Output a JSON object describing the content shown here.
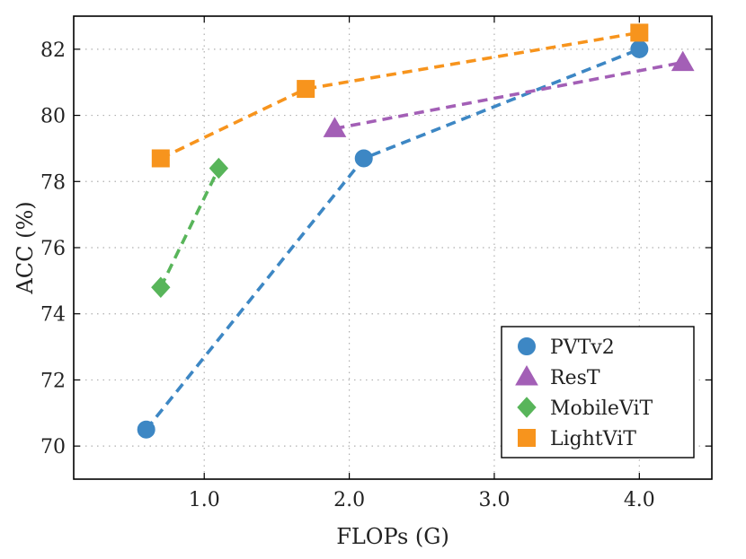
{
  "chart_data": {
    "type": "line",
    "title": "",
    "xlabel": "FLOPs (G)",
    "ylabel": "ACC (%)",
    "xlim": [
      0.1,
      4.5
    ],
    "ylim": [
      69,
      83
    ],
    "xticks": [
      1.0,
      2.0,
      3.0,
      4.0
    ],
    "xtick_labels": [
      "1.0",
      "2.0",
      "3.0",
      "4.0"
    ],
    "yticks": [
      70,
      72,
      74,
      76,
      78,
      80,
      82
    ],
    "ytick_labels": [
      "70",
      "72",
      "74",
      "76",
      "78",
      "80",
      "82"
    ],
    "grid": true,
    "legend_position": "bottom-right",
    "series": [
      {
        "name": "PVTv2",
        "marker": "circle",
        "color": "#3d87c4",
        "x": [
          0.6,
          2.1,
          4.0
        ],
        "y": [
          70.5,
          78.7,
          82.0
        ]
      },
      {
        "name": "ResT",
        "marker": "triangle",
        "color": "#a35fb6",
        "x": [
          1.9,
          4.3
        ],
        "y": [
          79.6,
          81.6
        ]
      },
      {
        "name": "MobileViT",
        "marker": "diamond",
        "color": "#58b55a",
        "x": [
          0.7,
          1.1
        ],
        "y": [
          74.8,
          78.4
        ]
      },
      {
        "name": "LightViT",
        "marker": "square",
        "color": "#f7941d",
        "x": [
          0.7,
          1.7,
          4.0
        ],
        "y": [
          78.7,
          80.8,
          82.5
        ]
      }
    ]
  }
}
